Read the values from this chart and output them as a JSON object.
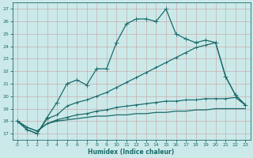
{
  "title": "",
  "xlabel": "Humidex (Indice chaleur)",
  "ylabel": "",
  "background_color": "#cce9e9",
  "grid_color": "#b0cccc",
  "line_color": "#1a6b6b",
  "xlim": [
    -0.5,
    23.5
  ],
  "ylim": [
    16.5,
    27.5
  ],
  "yticks": [
    17,
    18,
    19,
    20,
    21,
    22,
    23,
    24,
    25,
    26,
    27
  ],
  "xticks": [
    0,
    1,
    2,
    3,
    4,
    5,
    6,
    7,
    8,
    9,
    10,
    11,
    12,
    13,
    14,
    15,
    16,
    17,
    18,
    19,
    20,
    21,
    22,
    23
  ],
  "series": [
    {
      "x": [
        0,
        1,
        2,
        3,
        4,
        5,
        6,
        7,
        8,
        9,
        10,
        11,
        12,
        13,
        14,
        15,
        16,
        17,
        18,
        19,
        20,
        21,
        22,
        23
      ],
      "y": [
        18.0,
        17.3,
        17.0,
        18.3,
        19.5,
        21.0,
        21.3,
        20.9,
        22.2,
        22.2,
        24.3,
        25.8,
        26.2,
        26.2,
        26.0,
        27.0,
        25.0,
        24.6,
        24.3,
        24.5,
        24.3,
        21.6,
        20.1,
        19.3
      ],
      "marker": "+",
      "markersize": 4,
      "linewidth": 0.9
    },
    {
      "x": [
        0,
        1,
        2,
        3,
        4,
        5,
        6,
        7,
        8,
        9,
        10,
        11,
        12,
        13,
        14,
        15,
        16,
        17,
        18,
        19,
        20,
        21,
        22,
        23
      ],
      "y": [
        18.0,
        17.3,
        17.0,
        18.2,
        18.5,
        19.2,
        19.5,
        19.7,
        20.0,
        20.3,
        20.7,
        21.1,
        21.5,
        21.9,
        22.3,
        22.7,
        23.1,
        23.5,
        23.9,
        24.1,
        24.3,
        21.6,
        20.1,
        19.3
      ],
      "marker": "+",
      "markersize": 3,
      "linewidth": 0.9
    },
    {
      "x": [
        0,
        1,
        2,
        3,
        4,
        5,
        6,
        7,
        8,
        9,
        10,
        11,
        12,
        13,
        14,
        15,
        16,
        17,
        18,
        19,
        20,
        21,
        22,
        23
      ],
      "y": [
        18.0,
        17.5,
        17.2,
        17.8,
        18.1,
        18.3,
        18.5,
        18.6,
        18.8,
        18.9,
        19.1,
        19.2,
        19.3,
        19.4,
        19.5,
        19.6,
        19.6,
        19.7,
        19.7,
        19.8,
        19.8,
        19.8,
        19.9,
        19.3
      ],
      "marker": "+",
      "markersize": 3,
      "linewidth": 0.9
    },
    {
      "x": [
        0,
        1,
        2,
        3,
        4,
        5,
        6,
        7,
        8,
        9,
        10,
        11,
        12,
        13,
        14,
        15,
        16,
        17,
        18,
        19,
        20,
        21,
        22,
        23
      ],
      "y": [
        18.0,
        17.5,
        17.2,
        17.8,
        18.0,
        18.1,
        18.2,
        18.3,
        18.4,
        18.4,
        18.5,
        18.5,
        18.6,
        18.6,
        18.7,
        18.7,
        18.8,
        18.8,
        18.9,
        18.9,
        19.0,
        19.0,
        19.0,
        19.0
      ],
      "marker": null,
      "markersize": 0,
      "linewidth": 0.9
    }
  ]
}
